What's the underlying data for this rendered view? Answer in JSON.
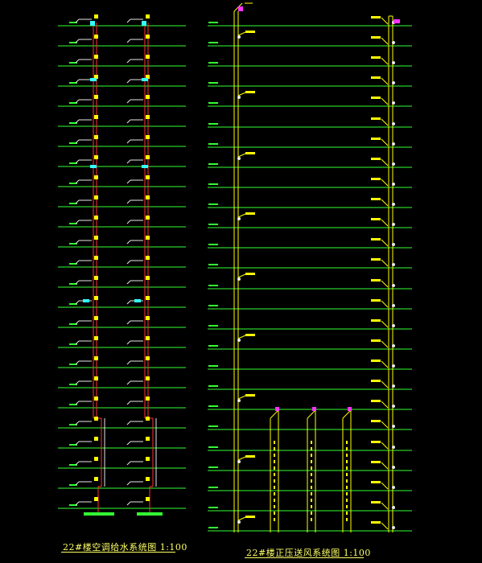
{
  "titles": {
    "left": "22#楼空调给水系统图 1:100",
    "right": "22#楼正压送风系统图 1:100"
  },
  "colors": {
    "background": "#000000",
    "floor_line": "#33ff33",
    "pipe_red": "#ff3333",
    "pipe_white": "#e8e8e8",
    "duct_yellow": "#ffff00",
    "valve_cyan": "#33ffff",
    "fan_magenta": "#ff33ff",
    "tag_yellow": "#ffff00"
  },
  "left_diagram": {
    "name": "air-conditioning-water-supply-system",
    "riser_count": 2,
    "floor_count": 25
  },
  "right_diagram": {
    "name": "positive-pressure-air-supply-system",
    "main_duct_count": 2,
    "lower_shaft_count": 3,
    "floor_count": 26
  }
}
